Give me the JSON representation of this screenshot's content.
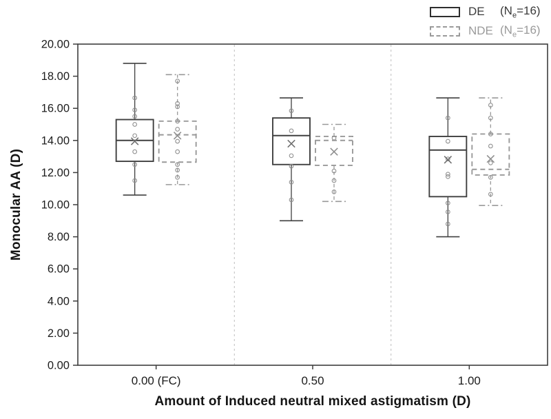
{
  "legend": {
    "items": [
      {
        "name": "DE",
        "count_prefix": "(N",
        "count_sub": "e",
        "count_suffix": "=16)",
        "style": "solid",
        "color": "#2e2e2e"
      },
      {
        "name": "NDE",
        "count_prefix": "(N",
        "count_sub": "e",
        "count_suffix": "=16)",
        "style": "dashed",
        "color": "#9a9a9a"
      }
    ]
  },
  "chart_data": {
    "type": "boxplot",
    "title": "",
    "xlabel": "Amount of Induced neutral mixed astigmatism (D)",
    "ylabel": "Monocular AA (D)",
    "ylim": [
      0,
      20
    ],
    "grid": false,
    "legend_position": "top-right",
    "yticks": [
      {
        "value": 0,
        "label": "0.00"
      },
      {
        "value": 2,
        "label": "2.00"
      },
      {
        "value": 4,
        "label": "4.00"
      },
      {
        "value": 6,
        "label": "6.00"
      },
      {
        "value": 8,
        "label": "8.00"
      },
      {
        "value": 10,
        "label": "10.00"
      },
      {
        "value": 12,
        "label": "12.00"
      },
      {
        "value": 14,
        "label": "14.00"
      },
      {
        "value": 16,
        "label": "16.00"
      },
      {
        "value": 18,
        "label": "18.00"
      },
      {
        "value": 20,
        "label": "20.00"
      }
    ],
    "categories": [
      "0.00 (FC)",
      "0.50",
      "1.00"
    ],
    "series_styles": {
      "DE": {
        "color": "#3f3f3f",
        "mean_color": "#707070",
        "box_dash": "",
        "whisker_dash": "",
        "cap_dash": ""
      },
      "NDE": {
        "color": "#999999",
        "mean_color": "#8f8f8f",
        "box_dash": "7 5",
        "whisker_dash": "5 4",
        "cap_dash": "9 4 2 4"
      }
    },
    "colors": {
      "frame": "#3d3d3d",
      "text": "#1c1c1c",
      "separator": "#c8c8c8",
      "points": "#8f8f8f",
      "box_fill": "#ffffff"
    },
    "groups": [
      {
        "category": "0.00 (FC)",
        "DE": {
          "whisker_low": 10.6,
          "q1": 12.7,
          "median": 14.0,
          "q3": 15.3,
          "whisker_high": 18.8,
          "mean": 13.95,
          "points": [
            16.65,
            15.9,
            15.5,
            15.0,
            14.3,
            13.3,
            12.5,
            11.5
          ]
        },
        "NDE": {
          "whisker_low": 11.25,
          "q1": 12.65,
          "median": 14.35,
          "q3": 15.2,
          "whisker_high": 18.1,
          "mean": 14.3,
          "points": [
            17.7,
            16.3,
            16.1,
            15.2,
            14.7,
            13.95,
            13.3,
            12.5,
            12.15,
            11.7
          ]
        }
      },
      {
        "category": "0.50",
        "DE": {
          "whisker_low": 9.0,
          "q1": 12.5,
          "median": 14.3,
          "q3": 15.4,
          "whisker_high": 16.65,
          "mean": 13.8,
          "points": [
            15.85,
            14.6,
            13.05,
            12.4,
            11.4,
            10.3
          ]
        },
        "NDE": {
          "whisker_low": 10.2,
          "q1": 12.45,
          "median": 14.0,
          "q3": 14.25,
          "whisker_high": 15.0,
          "mean": 13.3,
          "points": [
            14.15,
            12.1,
            11.5,
            10.8
          ]
        }
      },
      {
        "category": "1.00",
        "DE": {
          "whisker_low": 8.0,
          "q1": 10.5,
          "median": 13.4,
          "q3": 14.25,
          "whisker_high": 16.65,
          "mean": 12.8,
          "points": [
            15.4,
            13.95,
            12.85,
            11.9,
            11.75,
            10.1,
            9.55,
            8.8
          ]
        },
        "NDE": {
          "whisker_low": 9.95,
          "q1": 11.85,
          "median": 12.2,
          "q3": 14.4,
          "whisker_high": 16.65,
          "mean": 12.85,
          "points": [
            16.2,
            15.4,
            14.4,
            13.65,
            12.6,
            11.7,
            10.65
          ]
        }
      }
    ]
  }
}
